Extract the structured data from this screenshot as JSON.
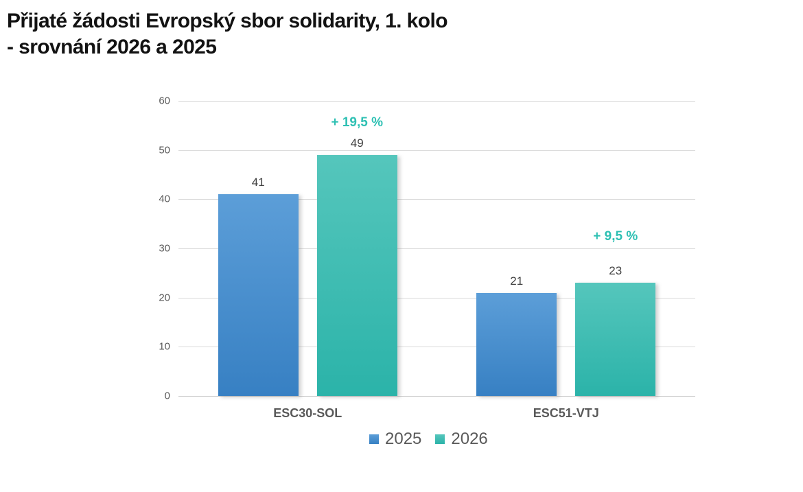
{
  "title": {
    "line1": "Přijaté žádosti Evropský sbor solidarity, 1. kolo",
    "line2": "- srovnání 2026 a 2025"
  },
  "chart_data": {
    "type": "bar",
    "title": "Přijaté žádosti Evropský sbor solidarity, 1. kolo - srovnání 2026 a 2025",
    "categories": [
      "ESC30-SOL",
      "ESC51-VTJ"
    ],
    "series": [
      {
        "name": "2025",
        "values": [
          41,
          21
        ],
        "color_top": "#5C9ED8",
        "color_bottom": "#3780C3"
      },
      {
        "name": "2026",
        "values": [
          49,
          23
        ],
        "color_top": "#55C6BC",
        "color_bottom": "#2BB3A9"
      }
    ],
    "annotations": [
      {
        "text": "+ 19,5 %",
        "category_index": 0,
        "series_index": 1,
        "y_value": 55.5
      },
      {
        "text": "+ 9,5 %",
        "category_index": 1,
        "series_index": 1,
        "y_value": 32.4
      }
    ],
    "xlabel": "",
    "ylabel": "",
    "ylim": [
      0,
      60
    ],
    "yticks": [
      0,
      10,
      20,
      30,
      40,
      50,
      60
    ],
    "grid": true,
    "legend": {
      "position": "bottom",
      "entries": [
        "2025",
        "2026"
      ]
    },
    "colors": {
      "title_text": "#121212",
      "axis_text": "#595959",
      "data_label_text": "#404040",
      "category_text": "#595959",
      "annotation_text": "#2EC0B3",
      "gridline": "#D9D9D9"
    }
  }
}
